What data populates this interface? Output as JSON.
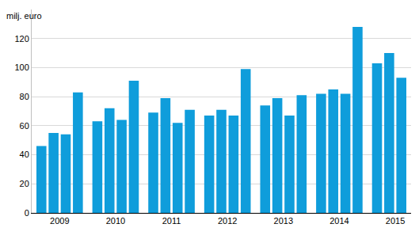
{
  "chart_data": {
    "type": "bar",
    "y_label": "milj. euro",
    "categories": [
      null,
      "2009",
      null,
      null,
      null,
      "2010",
      null,
      null,
      null,
      "2011",
      null,
      null,
      null,
      "2012",
      null,
      null,
      null,
      "2013",
      null,
      null,
      null,
      "2014",
      null,
      null,
      null,
      "2015",
      null
    ],
    "values": [
      46,
      55,
      54,
      83,
      63,
      72,
      64,
      91,
      69,
      79,
      62,
      71,
      67,
      71,
      67,
      99,
      74,
      79,
      67,
      81,
      82,
      85,
      82,
      128,
      103,
      110,
      93
    ],
    "color": "#0f9ddb",
    "ylim": [
      0,
      140
    ],
    "yticks": [
      0,
      20,
      40,
      60,
      80,
      100,
      120
    ],
    "grid": true
  }
}
